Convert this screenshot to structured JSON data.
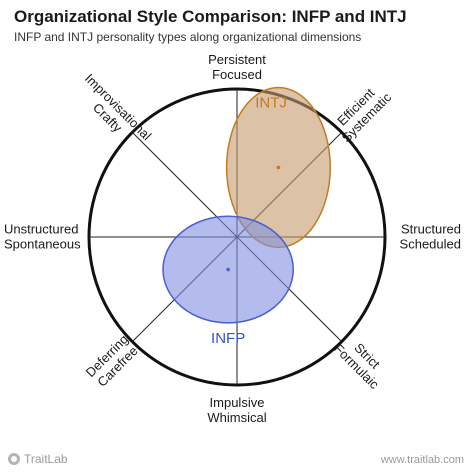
{
  "title": "Organizational Style Comparison: INFP and INTJ",
  "subtitle": "INFP and INTJ personality types along organizational dimensions",
  "chart_data": {
    "type": "radar",
    "rings": 5,
    "axes": [
      {
        "lines": [
          "Persistent",
          "Focused"
        ]
      },
      {
        "lines": [
          "Efficient",
          "Systematic"
        ]
      },
      {
        "lines": [
          "Structured",
          "Scheduled"
        ]
      },
      {
        "lines": [
          "Strict",
          "Formulaic"
        ]
      },
      {
        "lines": [
          "Impulsive",
          "Whimsical"
        ]
      },
      {
        "lines": [
          "Deferring",
          "Carefree"
        ]
      },
      {
        "lines": [
          "Unstructured",
          "Spontaneous"
        ]
      },
      {
        "lines": [
          "Improvisational",
          "Crafty"
        ]
      }
    ],
    "series": [
      {
        "name": "INTJ",
        "cx": 0.28,
        "cy": 0.47,
        "rx": 0.35,
        "ry": 0.54,
        "fill": "#c49a6c",
        "stroke": "#c47b20",
        "text_color": "#c47b20"
      },
      {
        "name": "INFP",
        "cx": -0.06,
        "cy": -0.22,
        "rx": 0.44,
        "ry": 0.36,
        "fill": "#8090e0",
        "stroke": "#4a5fd0",
        "text_color": "#3550c8"
      }
    ]
  },
  "footer": {
    "brand": "TraitLab",
    "url": "www.traitlab.com"
  }
}
